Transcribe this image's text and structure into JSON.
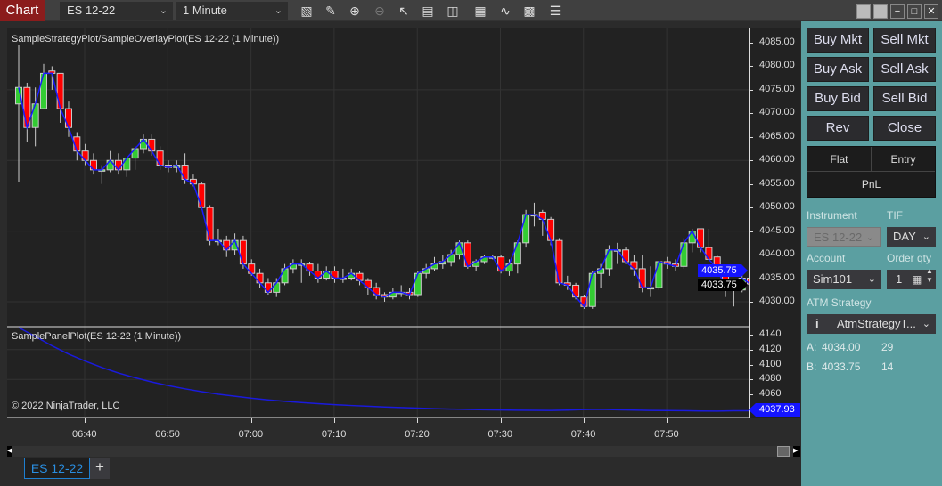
{
  "toolbar": {
    "chart_label": "Chart",
    "instrument": "ES 12-22",
    "interval": "1 Minute",
    "icons": [
      "bar-chart-icon",
      "pencil-icon",
      "zoom-in-icon",
      "zoom-out-icon",
      "pointer-icon",
      "data-box-icon",
      "properties-icon",
      "chart-style-icon",
      "drawing-tools-icon",
      "strategy-icon",
      "list-icon"
    ]
  },
  "main_panel": {
    "title": "SampleStrategyPlot/SampleOverlayPlot(ES 12-22 (1 Minute))",
    "y_ticks": [
      "4085.00",
      "4080.00",
      "4075.00",
      "4070.00",
      "4065.00",
      "4060.00",
      "4055.00",
      "4050.00",
      "4045.00",
      "4040.00",
      "4035.00",
      "4030.00"
    ],
    "overlay_marker": "4035.75",
    "last_price_marker": "4033.75"
  },
  "sub_panel": {
    "title": "SamplePanelPlot(ES 12-22 (1 Minute))",
    "y_ticks": [
      "4140",
      "4120",
      "4100",
      "4080",
      "4060"
    ],
    "marker": "4037.93",
    "copyright": "© 2022 NinjaTrader, LLC"
  },
  "time_axis": [
    "06:40",
    "06:50",
    "07:00",
    "07:10",
    "07:20",
    "07:30",
    "07:40",
    "07:50"
  ],
  "tabs": [
    {
      "label": "ES 12-22",
      "active": true
    }
  ],
  "add_tab": "+",
  "colors": {
    "up": "#33cc33",
    "down": "#ff0000",
    "overlay": "#1a1aff",
    "accent_panel": "#5b9fa1",
    "chart_button": "#8b1c1c"
  },
  "chart_data": {
    "type": "candlestick",
    "x_start": "06:32",
    "interval": "1 Minute",
    "ylim": [
      4027,
      4087
    ],
    "ohlc": [
      [
        4072,
        4084.5,
        4055.5,
        4075.5
      ],
      [
        4075.5,
        4076.5,
        4064,
        4067
      ],
      [
        4067,
        4075.5,
        4063,
        4072
      ],
      [
        4071,
        4080.5,
        4071,
        4078.5
      ],
      [
        4079,
        4080,
        4075,
        4078.5
      ],
      [
        4078.5,
        4078.5,
        4068,
        4071
      ],
      [
        4071,
        4072.5,
        4065,
        4067
      ],
      [
        4065,
        4066,
        4060,
        4062
      ],
      [
        4062,
        4063.5,
        4059,
        4060
      ],
      [
        4060,
        4061.5,
        4057,
        4058
      ],
      [
        4058,
        4059,
        4055,
        4058
      ],
      [
        4058,
        4062,
        4057.5,
        4060
      ],
      [
        4060,
        4061.5,
        4057,
        4058
      ],
      [
        4058,
        4060.5,
        4056.5,
        4060.5
      ],
      [
        4060.5,
        4063,
        4058,
        4062.5
      ],
      [
        4062.5,
        4065.5,
        4061.5,
        4064.5
      ],
      [
        4064.5,
        4065.5,
        4061,
        4062
      ],
      [
        4062,
        4063,
        4058,
        4059
      ],
      [
        4059,
        4060,
        4057.5,
        4058.5
      ],
      [
        4058.5,
        4060,
        4057.5,
        4059
      ],
      [
        4059,
        4061.5,
        4055,
        4056
      ],
      [
        4056,
        4057,
        4054.5,
        4055
      ],
      [
        4055,
        4055.5,
        4049.5,
        4050
      ],
      [
        4050,
        4050.5,
        4042,
        4043
      ],
      [
        4043,
        4045.5,
        4042,
        4043
      ],
      [
        4043,
        4044,
        4039.5,
        4041
      ],
      [
        4041,
        4044.5,
        4040,
        4043
      ],
      [
        4043,
        4044,
        4037,
        4038
      ],
      [
        4038,
        4039,
        4035.5,
        4036
      ],
      [
        4036,
        4037,
        4033,
        4034
      ],
      [
        4034,
        4035,
        4031.5,
        4032
      ],
      [
        4032,
        4035,
        4031,
        4034
      ],
      [
        4034,
        4038,
        4033.5,
        4037
      ],
      [
        4037,
        4039,
        4036,
        4038
      ],
      [
        4038,
        4039,
        4034,
        4038
      ],
      [
        4038,
        4038.5,
        4035.5,
        4036.5
      ],
      [
        4036.5,
        4038,
        4034,
        4035
      ],
      [
        4035,
        4037.5,
        4034.5,
        4036.5
      ],
      [
        4036.5,
        4037.5,
        4034,
        4035
      ],
      [
        4035,
        4037,
        4034,
        4035
      ],
      [
        4035,
        4037,
        4034.5,
        4036
      ],
      [
        4036,
        4036.5,
        4033.5,
        4034.5
      ],
      [
        4034.5,
        4035,
        4031.5,
        4033
      ],
      [
        4033,
        4034,
        4030.5,
        4031.5
      ],
      [
        4031.5,
        4032,
        4030,
        4031
      ],
      [
        4031,
        4033,
        4030.5,
        4032
      ],
      [
        4032,
        4033.5,
        4031,
        4032
      ],
      [
        4032,
        4033,
        4030.5,
        4031.5
      ],
      [
        4031.5,
        4036.5,
        4031,
        4036
      ],
      [
        4036,
        4038,
        4035,
        4037
      ],
      [
        4037,
        4039.5,
        4036.5,
        4038
      ],
      [
        4038,
        4040,
        4037,
        4038.5
      ],
      [
        4038.5,
        4041,
        4037.5,
        4040
      ],
      [
        4040,
        4043,
        4039,
        4042.5
      ],
      [
        4042.5,
        4043,
        4037,
        4037.5
      ],
      [
        4037.5,
        4039,
        4036.5,
        4038.5
      ],
      [
        4038.5,
        4040,
        4038,
        4039.5
      ],
      [
        4039.5,
        4040,
        4039,
        4039.5
      ],
      [
        4039.5,
        4040,
        4036,
        4036.5
      ],
      [
        4036.5,
        4039,
        4035.5,
        4038
      ],
      [
        4038,
        4043,
        4036,
        4042.5
      ],
      [
        4042.5,
        4049.5,
        4041.5,
        4048.5
      ],
      [
        4048.5,
        4051,
        4046,
        4048.5
      ],
      [
        4049,
        4049.5,
        4044,
        4047.5
      ],
      [
        4047.5,
        4048,
        4042,
        4043
      ],
      [
        4043,
        4043.5,
        4033.5,
        4034
      ],
      [
        4034,
        4035.5,
        4032.5,
        4033.5
      ],
      [
        4033.5,
        4034,
        4030.5,
        4031
      ],
      [
        4031,
        4031.5,
        4028.5,
        4029
      ],
      [
        4029,
        4036.5,
        4028.5,
        4036
      ],
      [
        4036,
        4038,
        4033,
        4037
      ],
      [
        4037,
        4042,
        4035.5,
        4041
      ],
      [
        4041,
        4042.5,
        4038,
        4041
      ],
      [
        4041,
        4041.5,
        4038,
        4038.5
      ],
      [
        4038.5,
        4040,
        4035.5,
        4037
      ],
      [
        4037,
        4040,
        4032,
        4033
      ],
      [
        4033,
        4037.5,
        4031,
        4033
      ],
      [
        4033,
        4038.5,
        4032.5,
        4038.5
      ],
      [
        4038.5,
        4039.5,
        4037,
        4038
      ],
      [
        4038,
        4039,
        4036.5,
        4037.5
      ],
      [
        4037.5,
        4043.5,
        4037,
        4042.5
      ],
      [
        4042.5,
        4045.5,
        4040.5,
        4045
      ],
      [
        4045.5,
        4045.5,
        4040.5,
        4041.5
      ],
      [
        4041.5,
        4045.5,
        4039,
        4039
      ],
      [
        4039.5,
        4040,
        4036,
        4037
      ],
      [
        4037,
        4037.5,
        4031,
        4033
      ],
      [
        4033,
        4034,
        4029,
        4032.5
      ],
      [
        4032.5,
        4036,
        4032,
        4035
      ],
      [
        4035,
        4036,
        4032.5,
        4033.75
      ]
    ],
    "panel_series_every_2_bars": [
      4152,
      4137.6,
      4125.1,
      4114,
      4104.5,
      4096,
      4088.6,
      4082.2,
      4076.6,
      4071.6,
      4067.4,
      4063.6,
      4060.2,
      4057.4,
      4054.8,
      4052.5,
      4050.6,
      4049,
      4047.5,
      4046.1,
      4045,
      4044,
      4043,
      4042.2,
      4041.5,
      4040.8,
      4040.2,
      4039.7,
      4039.3,
      4039,
      4038.7,
      4038.5,
      4038.4,
      4038.8,
      4039.5,
      4039.8,
      4039.3,
      4038.8,
      4038.3,
      4038.2,
      4038.1,
      4037.6,
      4037.4,
      4037.9,
      4037.93
    ],
    "panel_ylim": [
      4040,
      4160
    ]
  },
  "order_panel": {
    "buttons": [
      "Buy Mkt",
      "Sell Mkt",
      "Buy Ask",
      "Sell Ask",
      "Buy Bid",
      "Sell Bid",
      "Rev",
      "Close"
    ],
    "position": {
      "flat": "Flat",
      "entry": "Entry",
      "pnl": "PnL"
    },
    "instrument_label": "Instrument",
    "instrument": "ES 12-22",
    "tif_label": "TIF",
    "tif": "DAY",
    "account_label": "Account",
    "account": "Sim101",
    "qty_label": "Order qty",
    "qty": "1",
    "atm_label": "ATM Strategy",
    "atm": "AtmStrategyT...",
    "ask_label": "A:",
    "ask_price": "4034.00",
    "ask_size": "29",
    "bid_label": "B:",
    "bid_price": "4033.75",
    "bid_size": "14"
  }
}
